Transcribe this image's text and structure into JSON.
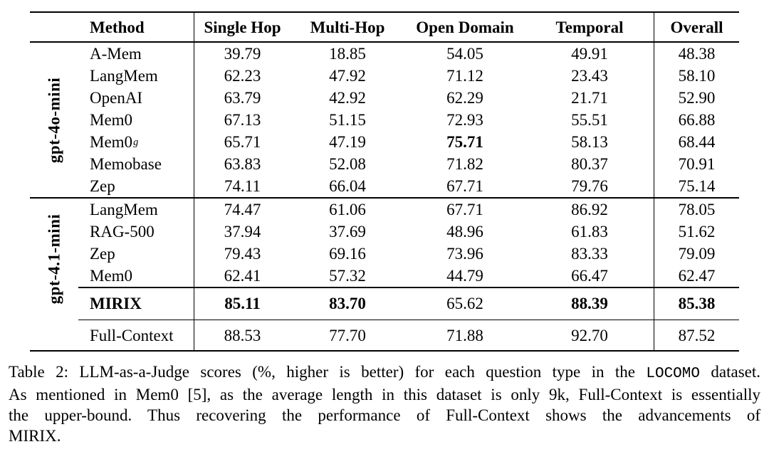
{
  "table": {
    "headers": [
      "Method",
      "Single Hop",
      "Multi-Hop",
      "Open Domain",
      "Temporal",
      "Overall"
    ],
    "group1": {
      "model": "gpt-4o-mini",
      "rows": [
        {
          "method": "A-Mem",
          "values": [
            "39.79",
            "18.85",
            "54.05",
            "49.91",
            "48.38"
          ]
        },
        {
          "method": "LangMem",
          "values": [
            "62.23",
            "47.92",
            "71.12",
            "23.43",
            "58.10"
          ]
        },
        {
          "method": "OpenAI",
          "values": [
            "63.79",
            "42.92",
            "62.29",
            "21.71",
            "52.90"
          ]
        },
        {
          "method": "Mem0",
          "values": [
            "67.13",
            "51.15",
            "72.93",
            "55.51",
            "66.88"
          ]
        },
        {
          "method": "Mem0",
          "sup": "g",
          "values": [
            "65.71",
            "47.19",
            "75.71",
            "58.13",
            "68.44"
          ]
        },
        {
          "method": "Memobase",
          "values": [
            "63.83",
            "52.08",
            "71.82",
            "80.37",
            "70.91"
          ]
        },
        {
          "method": "Zep",
          "values": [
            "74.11",
            "66.04",
            "67.71",
            "79.76",
            "75.14"
          ]
        }
      ]
    },
    "group2": {
      "model": "gpt-4.1-mini",
      "rows": [
        {
          "method": "LangMem",
          "values": [
            "74.47",
            "61.06",
            "67.71",
            "86.92",
            "78.05"
          ]
        },
        {
          "method": "RAG-500",
          "values": [
            "37.94",
            "37.69",
            "48.96",
            "61.83",
            "51.62"
          ]
        },
        {
          "method": "Zep",
          "values": [
            "79.43",
            "69.16",
            "73.96",
            "83.33",
            "79.09"
          ]
        },
        {
          "method": "Mem0",
          "values": [
            "62.41",
            "57.32",
            "44.79",
            "66.47",
            "62.47"
          ]
        }
      ],
      "highlight_row": {
        "method": "MIRIX",
        "values": [
          "85.11",
          "83.70",
          "65.62",
          "88.39",
          "85.38"
        ]
      }
    },
    "footer_row": {
      "method": "Full-Context",
      "values": [
        "88.53",
        "77.70",
        "71.88",
        "92.70",
        "87.52"
      ]
    }
  },
  "caption": {
    "line1_pre": "Table 2: LLM-as-a-Judge scores (%, higher is better) for each question type in the ",
    "line1_code": "LOCOMO",
    "line1_post": " dataset.",
    "line2": "As mentioned in Mem0 [5], as the average length in this dataset is only 9k, Full-Context is essentially",
    "line3": "the upper-bound. Thus recovering the performance of Full-Context shows the advancements of",
    "line4": "MIRIX."
  }
}
